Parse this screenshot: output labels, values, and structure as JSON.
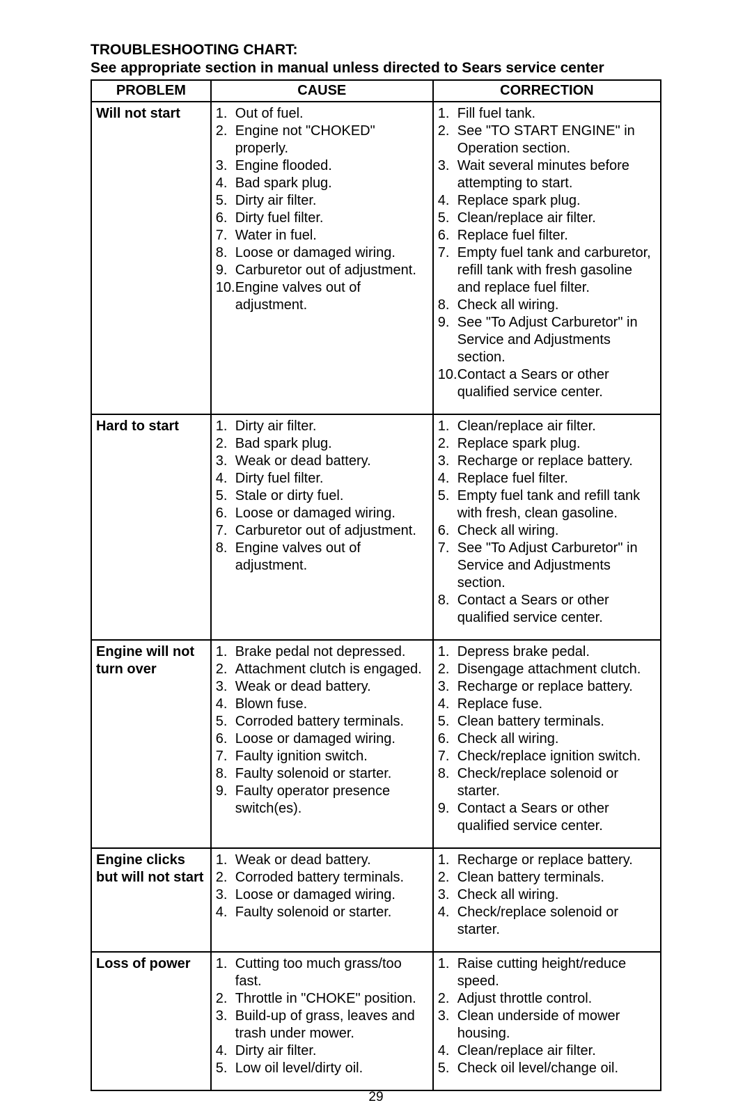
{
  "title": "TROUBLESHOOTING CHART:",
  "subtitle": "See appropriate section in manual unless directed to Sears service center",
  "headers": {
    "problem": "PROBLEM",
    "cause": "CAUSE",
    "correction": "CORRECTION"
  },
  "page_number": "29",
  "rows": [
    {
      "problem": "Will not start",
      "causes": [
        "Out of fuel.",
        "Engine not \"CHOKED\" properly.",
        "Engine flooded.",
        "Bad spark plug.",
        "Dirty air filter.",
        "Dirty fuel filter.",
        "Water in fuel.",
        "Loose or damaged wiring.",
        "Carburetor out of adjustment.",
        "Engine valves out of adjustment."
      ],
      "corrections": [
        "Fill fuel tank.",
        "See \"TO START ENGINE\" in Operation section.",
        "Wait several minutes before attempting to start.",
        "Replace spark plug.",
        "Clean/replace air filter.",
        "Replace fuel filter.",
        "Empty fuel tank and carburetor, refill tank with fresh gasoline and replace fuel filter.",
        "Check all wiring.",
        "See \"To Adjust Carburetor\" in Service and Adjustments section.",
        "Contact a Sears or other qualified service center."
      ]
    },
    {
      "problem": "Hard to start",
      "causes": [
        "Dirty air filter.",
        "Bad spark plug.",
        "Weak or dead battery.",
        "Dirty fuel filter.",
        "Stale or dirty fuel.",
        "Loose or damaged wiring.",
        "Carburetor out of adjustment.",
        "Engine valves out of adjustment."
      ],
      "corrections": [
        "Clean/replace air filter.",
        "Replace spark plug.",
        "Recharge or replace battery.",
        "Replace fuel filter.",
        "Empty fuel tank and refill tank with fresh, clean gasoline.",
        "Check all wiring.",
        "See \"To Adjust Carburetor\" in Service and Adjustments section.",
        "Contact a Sears or other qualified service center."
      ]
    },
    {
      "problem": "Engine will not turn over",
      "causes": [
        "Brake pedal not depressed.",
        "Attachment clutch is engaged.",
        "Weak or dead battery.",
        "Blown fuse.",
        "Corroded battery terminals.",
        "Loose or damaged wiring.",
        "Faulty ignition switch.",
        "Faulty solenoid or starter.",
        "Faulty operator presence switch(es)."
      ],
      "corrections": [
        "Depress brake pedal.",
        "Disengage attachment clutch.",
        "Recharge or replace battery.",
        "Replace fuse.",
        "Clean battery terminals.",
        "Check all wiring.",
        "Check/replace ignition switch.",
        "Check/replace solenoid or starter.",
        "Contact a Sears or other qualified service center."
      ]
    },
    {
      "problem": "Engine clicks but will not start",
      "causes": [
        "Weak or dead battery.",
        "Corroded battery terminals.",
        "Loose or damaged wiring.",
        "Faulty solenoid or starter."
      ],
      "corrections": [
        "Recharge or replace battery.",
        "Clean battery terminals.",
        "Check all wiring.",
        "Check/replace solenoid or starter."
      ]
    },
    {
      "problem": "Loss of power",
      "causes": [
        "Cutting too much grass/too fast.",
        "Throttle in \"CHOKE\" position.",
        "Build-up of grass, leaves and trash under mower.",
        "Dirty air filter.",
        "Low oil level/dirty oil."
      ],
      "corrections": [
        "Raise cutting height/reduce speed.",
        "Adjust throttle control.",
        "Clean underside of mower housing.",
        "Clean/replace air filter.",
        "Check oil level/change oil."
      ]
    }
  ]
}
